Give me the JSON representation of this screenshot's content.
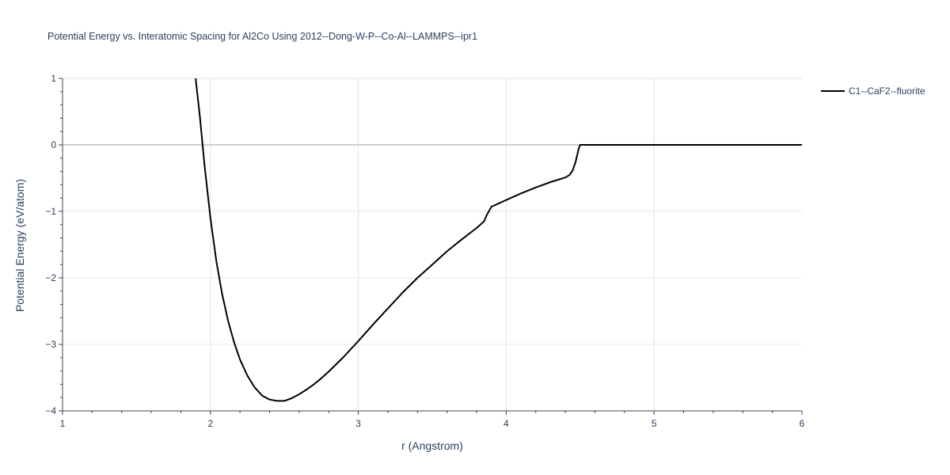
{
  "chart_data": {
    "type": "line",
    "title": "Potential Energy vs. Interatomic Spacing for Al2Co Using 2012--Dong-W-P--Co-Al--LAMMPS--ipr1",
    "xlabel": "r (Angstrom)",
    "ylabel": "Potential Energy (eV/atom)",
    "xlim": [
      1,
      6
    ],
    "ylim": [
      -4,
      1
    ],
    "x_ticks": [
      "1",
      "2",
      "3",
      "4",
      "5",
      "6"
    ],
    "y_ticks": [
      "1",
      "0",
      "−1",
      "−2",
      "−3",
      "−4"
    ],
    "grid": true,
    "legend_position": "top-right",
    "series": [
      {
        "name": "C1--CaF2--fluorite",
        "color": "#000000",
        "x": [
          1.9,
          1.93,
          1.96,
          2.0,
          2.04,
          2.08,
          2.12,
          2.16,
          2.2,
          2.25,
          2.3,
          2.35,
          2.4,
          2.45,
          2.5,
          2.55,
          2.6,
          2.65,
          2.7,
          2.75,
          2.8,
          2.9,
          3.0,
          3.1,
          3.2,
          3.3,
          3.4,
          3.5,
          3.6,
          3.7,
          3.8,
          3.85,
          3.87,
          3.9,
          4.0,
          4.1,
          4.2,
          4.3,
          4.4,
          4.43,
          4.45,
          4.47,
          4.49,
          4.5,
          4.6,
          5.0,
          5.5,
          6.0
        ],
        "y": [
          1.0,
          0.4,
          -0.3,
          -1.1,
          -1.75,
          -2.25,
          -2.65,
          -2.97,
          -3.23,
          -3.47,
          -3.65,
          -3.77,
          -3.83,
          -3.85,
          -3.85,
          -3.81,
          -3.75,
          -3.68,
          -3.6,
          -3.51,
          -3.41,
          -3.19,
          -2.95,
          -2.7,
          -2.46,
          -2.22,
          -2.0,
          -1.8,
          -1.6,
          -1.42,
          -1.25,
          -1.15,
          -1.05,
          -0.93,
          -0.83,
          -0.73,
          -0.64,
          -0.56,
          -0.49,
          -0.45,
          -0.38,
          -0.25,
          -0.06,
          0.0,
          0.0,
          0.0,
          0.0,
          0.0
        ]
      }
    ]
  }
}
